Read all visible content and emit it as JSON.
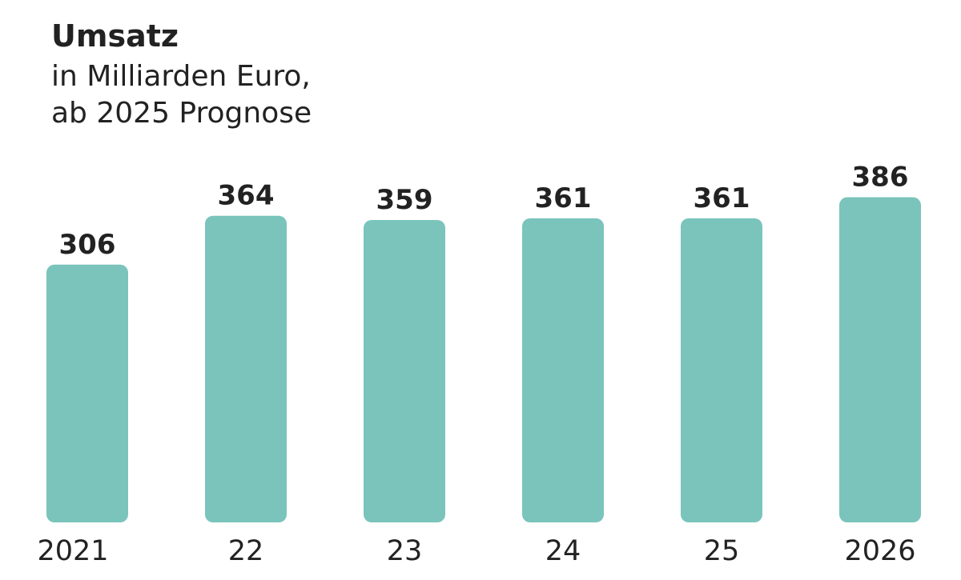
{
  "chart_data": {
    "type": "bar",
    "title": "Umsatz",
    "subtitle": [
      "in Milliarden Euro,",
      "ab 2025 Prognose"
    ],
    "categories": [
      "2021",
      "22",
      "23",
      "24",
      "25",
      "2026"
    ],
    "values": [
      306,
      364,
      359,
      361,
      361,
      386
    ],
    "color": "#7ac4bc"
  }
}
